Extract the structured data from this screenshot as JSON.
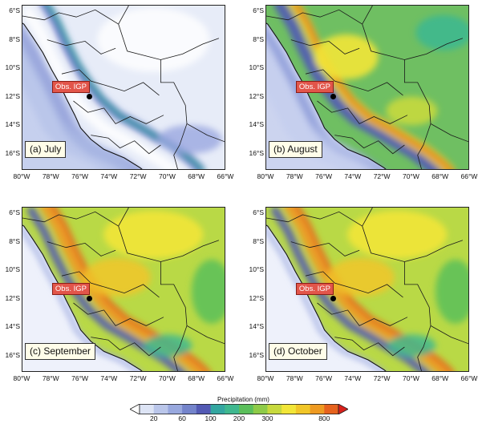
{
  "panels": [
    {
      "caption": "(a) July",
      "intensity": 0
    },
    {
      "caption": "(b) August",
      "intensity": 1
    },
    {
      "caption": "(c) September",
      "intensity": 2
    },
    {
      "caption": "(d) October",
      "intensity": 2
    }
  ],
  "latitude_labels": [
    "6°S",
    "8°S",
    "10°S",
    "12°S",
    "14°S",
    "16°S"
  ],
  "longitude_labels": [
    "80°W",
    "78°W",
    "76°W",
    "74°W",
    "72°W",
    "70°W",
    "68°W",
    "66°W"
  ],
  "station": {
    "label": "Obs. IGP",
    "lon": -75.32,
    "lat": -12.04
  },
  "extent": {
    "lon_min": -80,
    "lon_max": -66,
    "lat_top": -5.6,
    "lat_bottom": -17.2
  },
  "colorbar": {
    "title": "Precipitation (mm)",
    "tick_labels": [
      "20",
      "60",
      "100",
      "200",
      "300",
      "800"
    ],
    "colors": [
      "#ffffff",
      "#dde4f5",
      "#bac6ea",
      "#98a8de",
      "#7484cb",
      "#535ab4",
      "#33a6a0",
      "#3fb88f",
      "#5bbf5b",
      "#8ecb48",
      "#c7d93d",
      "#f2e638",
      "#f1c628",
      "#ee9a21",
      "#e6621d",
      "#d8201b"
    ]
  }
}
